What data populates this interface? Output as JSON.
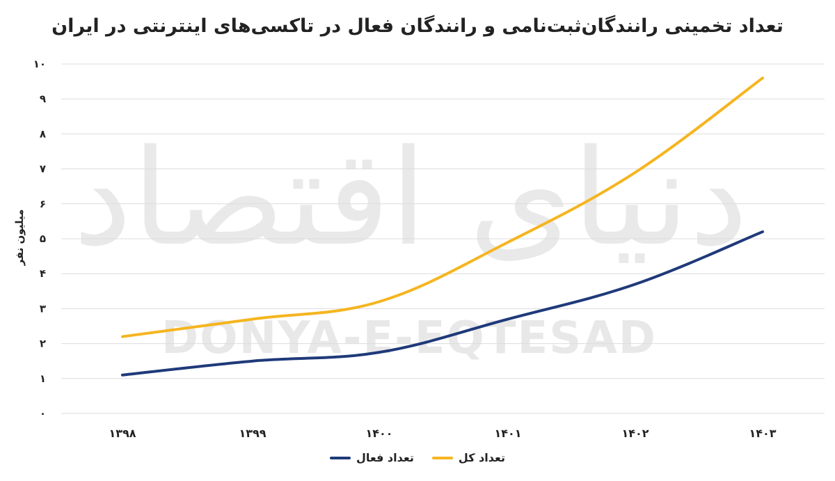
{
  "chart_data": {
    "type": "line",
    "title": "تعداد تخمینی رانندگان‌ثبت‌نامی و رانندگان فعال در تاکسی‌های اینترنتی در ایران",
    "ylabel": "میلیون نفر",
    "xlabel": "",
    "categories": [
      "۱۳۹۸",
      "۱۳۹۹",
      "۱۴۰۰",
      "۱۴۰۱",
      "۱۴۰۲",
      "۱۴۰۳"
    ],
    "ylim": [
      0,
      10
    ],
    "yticks": [
      "۰",
      "۱",
      "۲",
      "۳",
      "۴",
      "۵",
      "۶",
      "۷",
      "۸",
      "۹",
      "۱۰"
    ],
    "grid": true,
    "legend_position": "bottom",
    "series": [
      {
        "name": "تعداد کل",
        "color": "#F5B520",
        "values": [
          2.2,
          2.7,
          3.2,
          4.9,
          6.9,
          9.6
        ]
      },
      {
        "name": "تعداد فعال",
        "color": "#1F3A7A",
        "values": [
          1.1,
          1.5,
          1.75,
          2.7,
          3.7,
          5.2
        ]
      }
    ]
  },
  "watermark": {
    "latin": "DONYA-E-EQTESAD",
    "logo": "دنیای اقتصاد"
  }
}
